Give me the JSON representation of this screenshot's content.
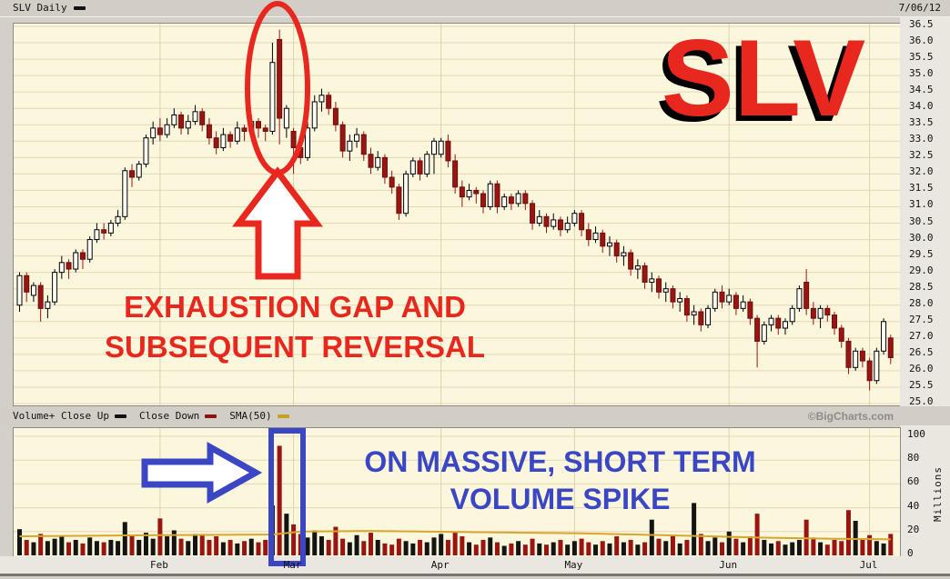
{
  "header": {
    "title": "SLV Daily",
    "date": "7/06/12"
  },
  "logo": {
    "text": "SLV"
  },
  "annotations": {
    "exhaustion_line1": "EXHAUSTION GAP AND",
    "exhaustion_line2": "SUBSEQUENT REVERSAL",
    "volume_line1": "ON MASSIVE, SHORT TERM",
    "volume_line2": "VOLUME SPIKE"
  },
  "legend": {
    "volume_up": "Volume+ Close Up",
    "close_down": "Close Down",
    "sma": "SMA(50)"
  },
  "copyright": "©BigCharts.com",
  "colors": {
    "red_accent": "#e8281f",
    "blue_accent": "#3a46c4",
    "candle_up_fill": "#fffef6",
    "candle_up_stroke": "#000000",
    "candle_down": "#9a1512",
    "candle_down_stroke": "#6d0e0e",
    "vol_up": "#141414",
    "sma": "#d8a62c",
    "grid_h": "#e6d5bd",
    "grid_v": "#d9d3ae",
    "dash_black": "#111111",
    "dash_red": "#8b1212",
    "dash_gold": "#c8a028"
  },
  "chart_data": [
    {
      "type": "candlestick",
      "title": "SLV Daily",
      "as_of_date": "7/06/12",
      "ylim": [
        25.0,
        36.5
      ],
      "y_tick_step": 0.5,
      "y_ticks": [
        "36.5",
        "36.0",
        "35.5",
        "35.0",
        "34.5",
        "34.0",
        "33.5",
        "33.0",
        "32.5",
        "32.0",
        "31.5",
        "31.0",
        "30.5",
        "30.0",
        "29.5",
        "29.0",
        "28.5",
        "28.0",
        "27.5",
        "27.0",
        "26.5",
        "26.0",
        "25.5",
        "25.0"
      ],
      "x_months": [
        {
          "label": "Feb",
          "i": 20
        },
        {
          "label": "Mar",
          "i": 39
        },
        {
          "label": "Apr",
          "i": 60
        },
        {
          "label": "May",
          "i": 79
        },
        {
          "label": "Jun",
          "i": 101
        },
        {
          "label": "Jul",
          "i": 121
        }
      ],
      "ohlc": [
        [
          28.0,
          29.0,
          27.8,
          28.9
        ],
        [
          28.9,
          29.0,
          28.1,
          28.4
        ],
        [
          28.3,
          28.7,
          28.1,
          28.6
        ],
        [
          28.6,
          28.7,
          27.5,
          27.9
        ],
        [
          27.9,
          28.3,
          27.6,
          28.1
        ],
        [
          28.1,
          29.1,
          28.0,
          29.0
        ],
        [
          29.0,
          29.5,
          28.8,
          29.3
        ],
        [
          29.3,
          29.4,
          28.8,
          29.1
        ],
        [
          29.1,
          29.7,
          29.0,
          29.6
        ],
        [
          29.6,
          29.7,
          29.1,
          29.4
        ],
        [
          29.4,
          30.1,
          29.3,
          30.0
        ],
        [
          30.0,
          30.5,
          29.9,
          30.3
        ],
        [
          30.3,
          30.5,
          30.0,
          30.2
        ],
        [
          30.2,
          30.6,
          30.1,
          30.5
        ],
        [
          30.5,
          30.9,
          30.4,
          30.7
        ],
        [
          30.7,
          32.2,
          30.6,
          32.1
        ],
        [
          32.1,
          32.3,
          31.6,
          31.9
        ],
        [
          31.9,
          32.4,
          31.8,
          32.3
        ],
        [
          32.3,
          33.2,
          32.2,
          33.1
        ],
        [
          33.1,
          33.6,
          32.9,
          33.4
        ],
        [
          33.4,
          33.7,
          33.0,
          33.2
        ],
        [
          33.2,
          33.7,
          33.1,
          33.5
        ],
        [
          33.5,
          34.0,
          33.4,
          33.8
        ],
        [
          33.8,
          33.9,
          33.2,
          33.4
        ],
        [
          33.4,
          33.8,
          33.2,
          33.6
        ],
        [
          33.6,
          34.1,
          33.5,
          33.9
        ],
        [
          33.9,
          34.0,
          33.3,
          33.5
        ],
        [
          33.5,
          33.7,
          32.9,
          33.1
        ],
        [
          33.1,
          33.3,
          32.6,
          32.8
        ],
        [
          32.8,
          33.4,
          32.7,
          33.2
        ],
        [
          33.2,
          33.3,
          32.8,
          33.0
        ],
        [
          33.0,
          33.6,
          32.9,
          33.4
        ],
        [
          33.4,
          33.5,
          33.0,
          33.3
        ],
        [
          33.3,
          33.8,
          33.2,
          33.6
        ],
        [
          33.6,
          33.7,
          33.1,
          33.4
        ],
        [
          33.4,
          33.5,
          33.0,
          33.3
        ],
        [
          33.3,
          36.0,
          33.2,
          35.4
        ],
        [
          36.1,
          36.4,
          32.9,
          33.7
        ],
        [
          33.4,
          34.1,
          33.1,
          34.0
        ],
        [
          33.3,
          33.4,
          32.0,
          32.8
        ],
        [
          32.8,
          33.1,
          32.3,
          32.5
        ],
        [
          32.5,
          33.6,
          32.4,
          33.4
        ],
        [
          33.4,
          34.4,
          33.3,
          34.2
        ],
        [
          34.2,
          34.6,
          33.9,
          34.4
        ],
        [
          34.4,
          34.5,
          33.8,
          34.0
        ],
        [
          34.0,
          34.2,
          33.3,
          33.5
        ],
        [
          33.5,
          33.6,
          32.5,
          32.7
        ],
        [
          32.7,
          33.2,
          32.4,
          33.0
        ],
        [
          33.0,
          33.4,
          32.8,
          33.2
        ],
        [
          33.2,
          33.3,
          32.4,
          32.6
        ],
        [
          32.6,
          32.8,
          32.0,
          32.2
        ],
        [
          32.2,
          32.7,
          32.1,
          32.5
        ],
        [
          32.5,
          32.6,
          31.7,
          31.9
        ],
        [
          31.9,
          32.1,
          31.4,
          31.6
        ],
        [
          31.6,
          31.7,
          30.6,
          30.8
        ],
        [
          30.8,
          32.1,
          30.7,
          32.0
        ],
        [
          32.0,
          32.5,
          31.9,
          32.4
        ],
        [
          32.4,
          32.5,
          31.8,
          32.0
        ],
        [
          32.0,
          32.7,
          31.9,
          32.6
        ],
        [
          32.6,
          33.1,
          32.0,
          33.0
        ],
        [
          32.6,
          33.1,
          32.5,
          33.0
        ],
        [
          33.0,
          33.2,
          32.2,
          32.4
        ],
        [
          32.4,
          32.6,
          31.4,
          31.6
        ],
        [
          31.6,
          31.8,
          31.0,
          31.3
        ],
        [
          31.3,
          31.7,
          31.2,
          31.5
        ],
        [
          31.5,
          31.6,
          31.1,
          31.4
        ],
        [
          31.4,
          31.5,
          30.8,
          31.0
        ],
        [
          31.0,
          31.8,
          30.9,
          31.7
        ],
        [
          31.7,
          31.8,
          30.8,
          31.0
        ],
        [
          31.0,
          31.4,
          30.9,
          31.3
        ],
        [
          31.3,
          31.4,
          30.9,
          31.1
        ],
        [
          31.1,
          31.5,
          31.0,
          31.4
        ],
        [
          31.4,
          31.5,
          30.9,
          31.1
        ],
        [
          31.1,
          31.2,
          30.3,
          30.5
        ],
        [
          30.5,
          30.9,
          30.4,
          30.7
        ],
        [
          30.7,
          30.8,
          30.2,
          30.4
        ],
        [
          30.4,
          30.8,
          30.3,
          30.6
        ],
        [
          30.6,
          30.7,
          30.1,
          30.3
        ],
        [
          30.3,
          30.7,
          30.2,
          30.5
        ],
        [
          30.5,
          30.9,
          30.4,
          30.8
        ],
        [
          30.8,
          30.9,
          30.1,
          30.3
        ],
        [
          30.3,
          30.5,
          29.8,
          30.0
        ],
        [
          30.0,
          30.4,
          29.9,
          30.2
        ],
        [
          30.2,
          30.3,
          29.6,
          29.8
        ],
        [
          29.8,
          30.1,
          29.5,
          29.9
        ],
        [
          29.9,
          30.0,
          29.3,
          29.5
        ],
        [
          29.5,
          29.8,
          29.2,
          29.6
        ],
        [
          29.6,
          29.7,
          28.9,
          29.1
        ],
        [
          29.1,
          29.4,
          28.8,
          29.2
        ],
        [
          29.2,
          29.3,
          28.5,
          28.7
        ],
        [
          28.7,
          29.0,
          28.4,
          28.8
        ],
        [
          28.8,
          28.9,
          28.2,
          28.4
        ],
        [
          28.4,
          28.7,
          28.1,
          28.5
        ],
        [
          28.5,
          28.6,
          27.9,
          28.1
        ],
        [
          28.1,
          28.4,
          27.8,
          28.2
        ],
        [
          28.2,
          28.3,
          27.5,
          27.7
        ],
        [
          27.7,
          28.0,
          27.4,
          27.8
        ],
        [
          27.8,
          27.9,
          27.2,
          27.4
        ],
        [
          27.4,
          28.0,
          27.3,
          27.9
        ],
        [
          27.9,
          28.5,
          27.8,
          28.4
        ],
        [
          28.4,
          28.6,
          27.9,
          28.1
        ],
        [
          28.1,
          28.5,
          28.0,
          28.3
        ],
        [
          28.3,
          28.4,
          27.7,
          27.9
        ],
        [
          27.9,
          28.3,
          27.8,
          28.1
        ],
        [
          28.1,
          28.2,
          27.4,
          27.6
        ],
        [
          27.6,
          27.7,
          26.1,
          26.9
        ],
        [
          26.9,
          27.5,
          26.8,
          27.4
        ],
        [
          27.4,
          27.7,
          27.2,
          27.6
        ],
        [
          27.6,
          27.7,
          27.1,
          27.3
        ],
        [
          27.3,
          27.6,
          27.1,
          27.5
        ],
        [
          27.5,
          28.0,
          27.4,
          27.9
        ],
        [
          27.9,
          28.6,
          27.8,
          28.5
        ],
        [
          28.7,
          29.1,
          27.7,
          27.9
        ],
        [
          27.9,
          28.1,
          27.4,
          27.6
        ],
        [
          27.6,
          28.0,
          27.3,
          27.9
        ],
        [
          27.9,
          28.0,
          27.5,
          27.7
        ],
        [
          27.7,
          27.8,
          27.1,
          27.3
        ],
        [
          27.3,
          27.4,
          26.7,
          26.9
        ],
        [
          26.9,
          27.0,
          25.9,
          26.1
        ],
        [
          26.1,
          26.7,
          26.0,
          26.6
        ],
        [
          26.6,
          26.7,
          26.1,
          26.3
        ],
        [
          26.3,
          26.4,
          25.4,
          25.7
        ],
        [
          25.7,
          26.7,
          25.6,
          26.6
        ],
        [
          26.6,
          27.6,
          26.5,
          27.5
        ],
        [
          27.0,
          27.1,
          26.2,
          26.4
        ]
      ]
    },
    {
      "type": "bar",
      "name": "Volume",
      "ylabel": "Millions",
      "ylim": [
        0,
        100
      ],
      "y_ticks": [
        "100",
        "80",
        "60",
        "40",
        "20",
        "0"
      ],
      "values": [
        22,
        13,
        11,
        18,
        12,
        14,
        16,
        11,
        13,
        10,
        15,
        12,
        11,
        13,
        12,
        28,
        17,
        13,
        19,
        14,
        31,
        16,
        21,
        14,
        12,
        18,
        18,
        13,
        16,
        11,
        13,
        10,
        12,
        14,
        11,
        13,
        42,
        92,
        35,
        26,
        18,
        15,
        21,
        16,
        13,
        24,
        14,
        11,
        17,
        12,
        19,
        13,
        10,
        9,
        14,
        12,
        10,
        13,
        11,
        15,
        18,
        13,
        20,
        16,
        11,
        9,
        13,
        15,
        11,
        8,
        10,
        12,
        9,
        14,
        10,
        9,
        11,
        13,
        9,
        12,
        14,
        11,
        9,
        12,
        10,
        16,
        11,
        13,
        9,
        11,
        30,
        14,
        12,
        17,
        10,
        13,
        44,
        18,
        12,
        15,
        11,
        20,
        14,
        11,
        16,
        35,
        13,
        10,
        12,
        9,
        11,
        13,
        30,
        15,
        11,
        9,
        13,
        12,
        38,
        29,
        13,
        17,
        12,
        10,
        18
      ],
      "sma50": [
        [
          0,
          16
        ],
        [
          20,
          17
        ],
        [
          36,
          17.5
        ],
        [
          40,
          20
        ],
        [
          50,
          20.5
        ],
        [
          65,
          19.5
        ],
        [
          80,
          18.5
        ],
        [
          95,
          16.5
        ],
        [
          105,
          15
        ],
        [
          115,
          14
        ],
        [
          124,
          13.5
        ]
      ]
    }
  ]
}
